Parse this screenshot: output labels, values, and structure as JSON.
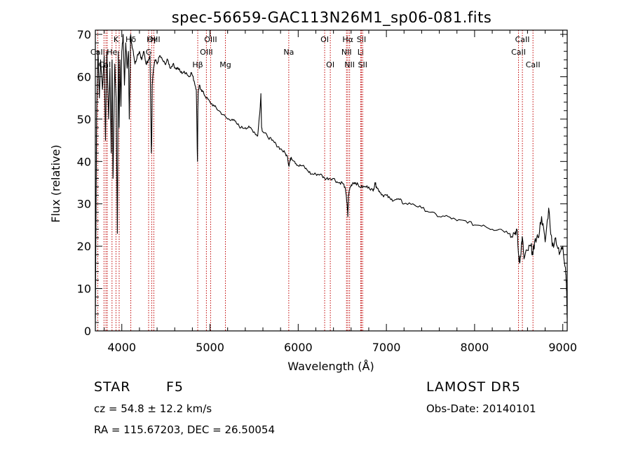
{
  "chart_data": {
    "type": "line",
    "title": "spec-56659-GAC113N26M1_sp06-081.fits",
    "xlabel": "Wavelength (Å)",
    "ylabel": "Flux (relative)",
    "xlim": [
      3700,
      9050
    ],
    "ylim": [
      0,
      71
    ],
    "x_ticks": [
      4000,
      5000,
      6000,
      7000,
      8000,
      9000
    ],
    "y_ticks": [
      0,
      10,
      20,
      30,
      40,
      50,
      60,
      70
    ],
    "grid": false,
    "series": [
      {
        "x": [
          3700,
          3705,
          3715,
          3730,
          3745,
          3760,
          3780,
          3800,
          3815,
          3830,
          3850,
          3865,
          3880,
          3890,
          3900,
          3920,
          3935,
          3950,
          3960,
          3970,
          3980,
          3990,
          4000,
          4015,
          4030,
          4045,
          4060,
          4075,
          4085,
          4100,
          4110,
          4130,
          4150,
          4175,
          4200,
          4225,
          4250,
          4275,
          4300,
          4320,
          4335,
          4340,
          4345,
          4360,
          4380,
          4400,
          4430,
          4460,
          4490,
          4520,
          4550,
          4580,
          4610,
          4640,
          4670,
          4700,
          4730,
          4760,
          4790,
          4820,
          4845,
          4858,
          4862,
          4866,
          4880,
          4900,
          4930,
          4960,
          5000,
          5050,
          5100,
          5150,
          5200,
          5250,
          5300,
          5350,
          5400,
          5450,
          5500,
          5540,
          5570,
          5577,
          5585,
          5600,
          5650,
          5700,
          5750,
          5800,
          5850,
          5880,
          5893,
          5905,
          5920,
          5960,
          6000,
          6050,
          6100,
          6150,
          6200,
          6250,
          6300,
          6350,
          6400,
          6450,
          6500,
          6530,
          6555,
          6563,
          6570,
          6590,
          6620,
          6650,
          6700,
          6750,
          6800,
          6850,
          6870,
          6890,
          6920,
          6960,
          7000,
          7050,
          7100,
          7150,
          7200,
          7300,
          7400,
          7500,
          7600,
          7700,
          7800,
          7900,
          8000,
          8100,
          8200,
          8300,
          8400,
          8450,
          8480,
          8498,
          8510,
          8530,
          8542,
          8560,
          8600,
          8640,
          8662,
          8680,
          8720,
          8760,
          8800,
          8840,
          8880,
          8920,
          8960,
          9000,
          9030,
          9040,
          9050
        ],
        "y": [
          3,
          20,
          52,
          66,
          55,
          64,
          57,
          65,
          45,
          66,
          50,
          62,
          42,
          64,
          36,
          63,
          55,
          23,
          66,
          48,
          64,
          53,
          66,
          70,
          58,
          68,
          62,
          66,
          50,
          70,
          68,
          66,
          63,
          65,
          66,
          64,
          66,
          63,
          64,
          65,
          42,
          46,
          58,
          62,
          64,
          63,
          65,
          64,
          63,
          64,
          62,
          63,
          62,
          62,
          61,
          61,
          61,
          60,
          61,
          59,
          57,
          40,
          52,
          56,
          58,
          57,
          56,
          55,
          54,
          53,
          52,
          51,
          50,
          50,
          49,
          48,
          48,
          48,
          47,
          46,
          53,
          56,
          48,
          47,
          46,
          45,
          44,
          43,
          42,
          41,
          39,
          40,
          41,
          40,
          39,
          39,
          38,
          37,
          37,
          37,
          36,
          36,
          36,
          35,
          35,
          34,
          30,
          27,
          32,
          34,
          35,
          35,
          34,
          34,
          34,
          33,
          35,
          34,
          33,
          32,
          32,
          31,
          31,
          31,
          30,
          30,
          29,
          28,
          27,
          27,
          26,
          26,
          25,
          25,
          24,
          24,
          23,
          23,
          24,
          18,
          16,
          20,
          22,
          17,
          19,
          20,
          18,
          21,
          22,
          27,
          21,
          29,
          20,
          22,
          18,
          20,
          15,
          12,
          3
        ]
      }
    ],
    "line_markers": [
      {
        "label": "Hδ",
        "x": 4102,
        "tier": 0
      },
      {
        "label": "K",
        "x": 3934,
        "tier": 0
      },
      {
        "label": "Hγ",
        "x": 4340,
        "tier": 0
      },
      {
        "label": "OIII",
        "x": 4363,
        "tier": 0
      },
      {
        "label": "OIII",
        "x": 5007,
        "tier": 0
      },
      {
        "label": "OI",
        "x": 6300,
        "tier": 0
      },
      {
        "label": "Hα",
        "x": 6563,
        "tier": 0
      },
      {
        "label": "SII",
        "x": 6717,
        "tier": 0
      },
      {
        "label": "CaII",
        "x": 8542,
        "tier": 0
      },
      {
        "label": "CaII",
        "x": 3727,
        "tier": 1
      },
      {
        "label": "He",
        "x": 3889,
        "tier": 1
      },
      {
        "label": "G",
        "x": 4304,
        "tier": 1
      },
      {
        "label": "OIII",
        "x": 4959,
        "tier": 1
      },
      {
        "label": "Na",
        "x": 5893,
        "tier": 1
      },
      {
        "label": "NII",
        "x": 6548,
        "tier": 1
      },
      {
        "label": "Li",
        "x": 6708,
        "tier": 1
      },
      {
        "label": "CaII",
        "x": 8498,
        "tier": 1
      },
      {
        "label": "CaII",
        "x": 3820,
        "tier": 2
      },
      {
        "label": "Hβ",
        "x": 4861,
        "tier": 2
      },
      {
        "label": "Mg",
        "x": 5175,
        "tier": 2
      },
      {
        "label": "OI",
        "x": 6364,
        "tier": 2
      },
      {
        "label": "NII",
        "x": 6583,
        "tier": 2
      },
      {
        "label": "SII",
        "x": 6731,
        "tier": 2
      },
      {
        "label": "CaII",
        "x": 8662,
        "tier": 2
      }
    ],
    "marker_lines_only": [
      3798,
      3835,
      3970
    ]
  },
  "info": {
    "class_label": "STAR",
    "subclass": "F5",
    "survey": "LAMOST  DR5",
    "velocity": "cz = 54.8 ± 12.2 km/s",
    "obs_date": "Obs-Date: 20140101",
    "coords": "RA = 115.67203, DEC =  26.50054"
  },
  "colors": {
    "marker_line": "#c00000",
    "spectrum": "#000000"
  }
}
